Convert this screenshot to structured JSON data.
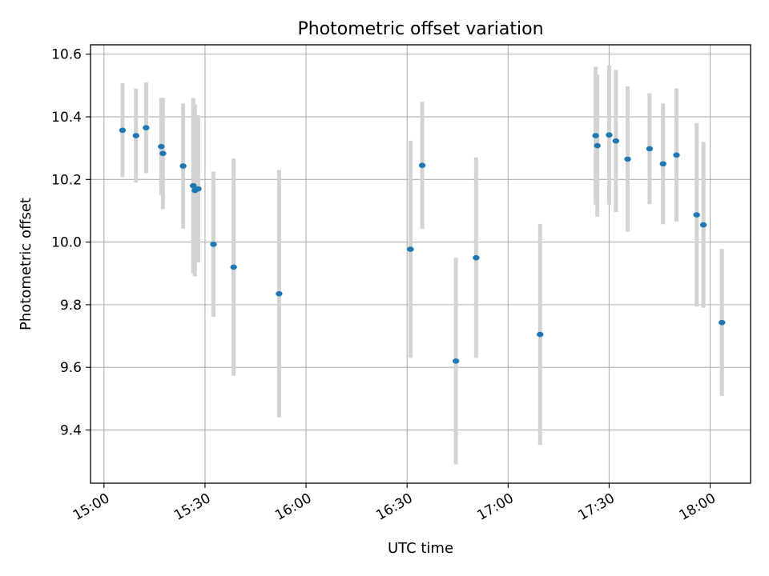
{
  "chart_data": {
    "type": "scatter",
    "title": "Photometric offset variation",
    "xlabel": "UTC time",
    "ylabel": "Photometric offset",
    "x_ticks": [
      "15:00",
      "15:30",
      "16:00",
      "16:30",
      "17:00",
      "17:30",
      "18:00"
    ],
    "y_ticks": [
      "9.4",
      "9.6",
      "9.8",
      "10.0",
      "10.2",
      "10.4",
      "10.6"
    ],
    "xlim": [
      "14:56",
      "18:12"
    ],
    "ylim": [
      9.23,
      10.63
    ],
    "grid": true,
    "colors": {
      "points": "#1f77b4",
      "errorbars": "#d3d3d3",
      "grid": "#b0b0b0"
    },
    "points": [
      {
        "x": "15:05:30",
        "y": 10.357,
        "err": 0.15
      },
      {
        "x": "15:09:30",
        "y": 10.34,
        "err": 0.15
      },
      {
        "x": "15:12:30",
        "y": 10.365,
        "err": 0.145
      },
      {
        "x": "15:17:00",
        "y": 10.305,
        "err": 0.155
      },
      {
        "x": "15:17:30",
        "y": 10.283,
        "err": 0.178
      },
      {
        "x": "15:23:30",
        "y": 10.243,
        "err": 0.2
      },
      {
        "x": "15:26:30",
        "y": 10.18,
        "err": 0.28
      },
      {
        "x": "15:27:00",
        "y": 10.165,
        "err": 0.275
      },
      {
        "x": "15:28:00",
        "y": 10.17,
        "err": 0.235
      },
      {
        "x": "15:32:30",
        "y": 9.993,
        "err": 0.232
      },
      {
        "x": "15:38:30",
        "y": 9.92,
        "err": 0.347
      },
      {
        "x": "15:52:00",
        "y": 9.835,
        "err": 0.395
      },
      {
        "x": "16:31:00",
        "y": 9.977,
        "err": 0.347
      },
      {
        "x": "16:34:30",
        "y": 10.245,
        "err": 0.203
      },
      {
        "x": "16:44:30",
        "y": 9.62,
        "err": 0.33
      },
      {
        "x": "16:50:30",
        "y": 9.95,
        "err": 0.32
      },
      {
        "x": "17:09:30",
        "y": 9.705,
        "err": 0.353
      },
      {
        "x": "17:26:00",
        "y": 10.34,
        "err": 0.22
      },
      {
        "x": "17:26:30",
        "y": 10.308,
        "err": 0.227
      },
      {
        "x": "17:30:00",
        "y": 10.342,
        "err": 0.222
      },
      {
        "x": "17:32:00",
        "y": 10.323,
        "err": 0.227
      },
      {
        "x": "17:35:30",
        "y": 10.265,
        "err": 0.232
      },
      {
        "x": "17:42:00",
        "y": 10.298,
        "err": 0.177
      },
      {
        "x": "17:46:00",
        "y": 10.25,
        "err": 0.193
      },
      {
        "x": "17:50:00",
        "y": 10.278,
        "err": 0.213
      },
      {
        "x": "17:56:00",
        "y": 10.087,
        "err": 0.293
      },
      {
        "x": "17:58:00",
        "y": 10.055,
        "err": 0.265
      },
      {
        "x": "18:03:30",
        "y": 9.743,
        "err": 0.235
      }
    ]
  }
}
